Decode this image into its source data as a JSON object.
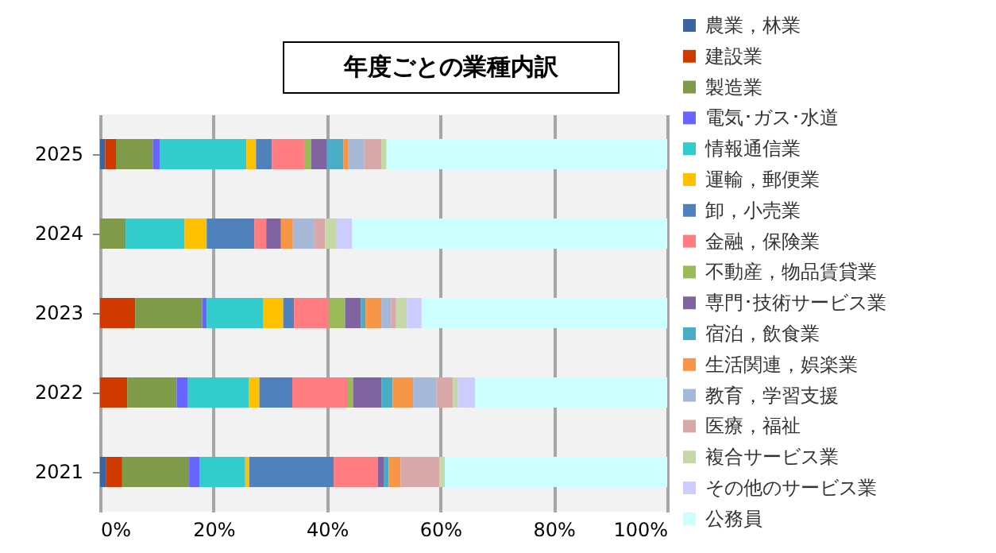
{
  "chart_data": {
    "type": "bar",
    "title": "年度ごとの業種内訳",
    "orientation": "horizontal",
    "stacked": true,
    "categories": [
      "2025",
      "2024",
      "2023",
      "2022",
      "2021"
    ],
    "series": [
      {
        "name": "農業，林業",
        "color": "#3b64a0",
        "values": [
          0.9,
          0,
          0,
          0,
          1.1
        ]
      },
      {
        "name": "建設業",
        "color": "#d03a00",
        "values": [
          1.9,
          0,
          6.2,
          4.8,
          2.8
        ]
      },
      {
        "name": "製造業",
        "color": "#7f9a48",
        "values": [
          6.5,
          4.5,
          11.8,
          8.7,
          11.8
        ]
      },
      {
        "name": "電気･ガス･水道",
        "color": "#6666ff",
        "values": [
          1.2,
          0,
          0.8,
          2.0,
          1.9
        ]
      },
      {
        "name": "情報通信業",
        "color": "#33cccc",
        "values": [
          15.3,
          10.4,
          10.0,
          10.7,
          8.0
        ]
      },
      {
        "name": "運輸，郵便業",
        "color": "#ffc000",
        "values": [
          1.7,
          3.9,
          3.5,
          1.9,
          0.7
        ]
      },
      {
        "name": "卸，小売業",
        "color": "#4f81bd",
        "values": [
          2.8,
          8.4,
          1.9,
          5.8,
          14.9
        ]
      },
      {
        "name": "金融，保険業",
        "color": "#ff7c80",
        "values": [
          5.7,
          2.1,
          6.2,
          9.8,
          7.8
        ]
      },
      {
        "name": "不動産，物品賃貸業",
        "color": "#9bbb59",
        "values": [
          1.2,
          0,
          2.8,
          0.9,
          0
        ]
      },
      {
        "name": "専門･技術サービス業",
        "color": "#8064a2",
        "values": [
          2.8,
          2.6,
          2.8,
          5.0,
          1.0
        ]
      },
      {
        "name": "宿泊，飲食業",
        "color": "#4bacc6",
        "values": [
          2.9,
          0,
          0.8,
          2.0,
          0.9
        ]
      },
      {
        "name": "生活関連，娯楽業",
        "color": "#f79646",
        "values": [
          0.9,
          2.1,
          2.8,
          3.6,
          2.1
        ]
      },
      {
        "name": "教育，学習支援",
        "color": "#a6b8d8",
        "values": [
          2.8,
          3.7,
          1.7,
          4.1,
          0
        ]
      },
      {
        "name": "医療，福祉",
        "color": "#d9a9a9",
        "values": [
          3.0,
          2.0,
          0.9,
          2.9,
          6.8
        ]
      },
      {
        "name": "複合サービス業",
        "color": "#c4d8a8",
        "values": [
          0.9,
          1.9,
          1.9,
          0.9,
          1.0
        ]
      },
      {
        "name": "その他のサービス業",
        "color": "#ccccff",
        "values": [
          0,
          2.8,
          2.6,
          3.0,
          0
        ]
      },
      {
        "name": "公務員",
        "color": "#ccffff",
        "values": [
          49.5,
          55.6,
          43.3,
          33.9,
          39.2
        ]
      }
    ],
    "xlim": [
      0,
      100
    ],
    "xticks": [
      {
        "value": 0,
        "label": "0%"
      },
      {
        "value": 20,
        "label": "20%"
      },
      {
        "value": 40,
        "label": "40%"
      },
      {
        "value": 60,
        "label": "60%"
      },
      {
        "value": 80,
        "label": "80%"
      },
      {
        "value": 100,
        "label": "100%"
      }
    ],
    "grid": "x",
    "legend": "right"
  }
}
